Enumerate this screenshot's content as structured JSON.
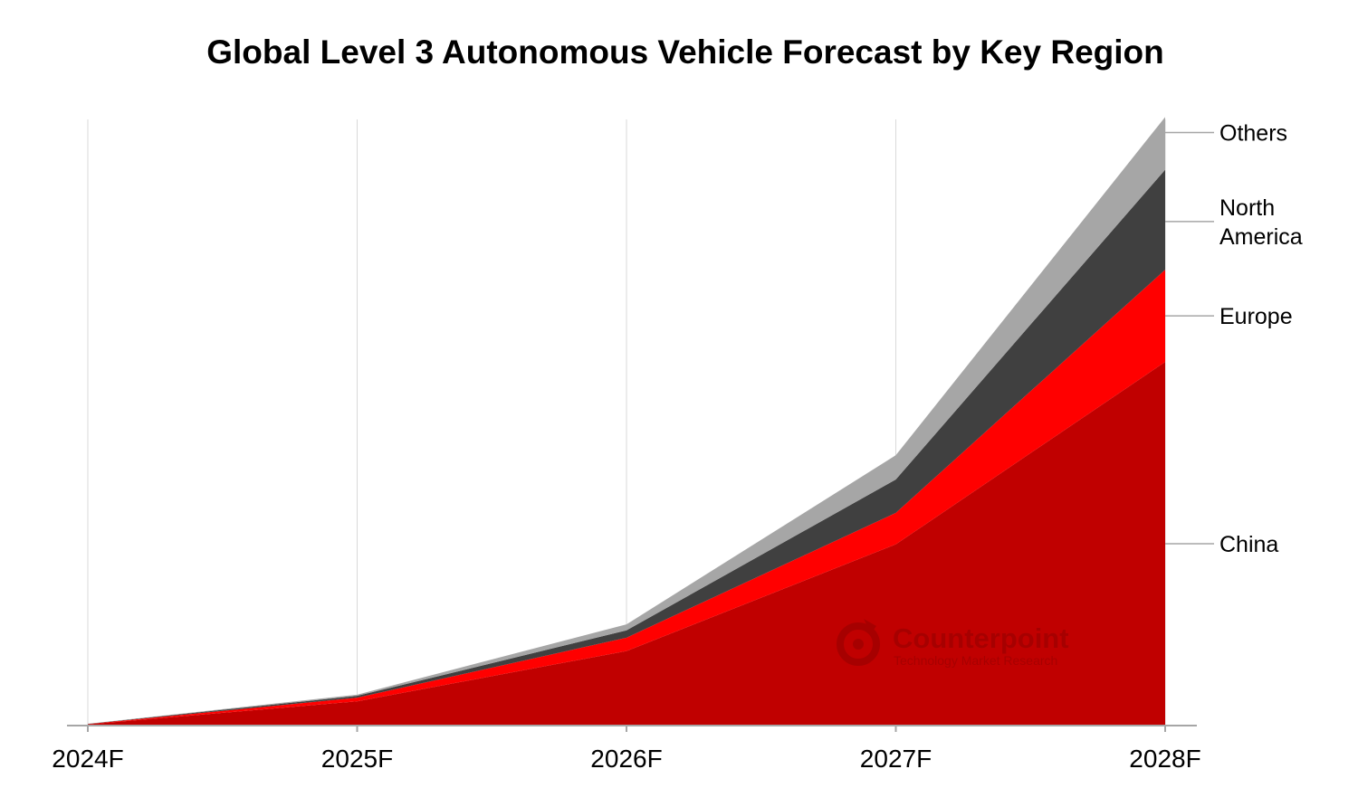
{
  "chart_data": {
    "type": "area",
    "stacked": true,
    "title": "Global Level 3 Autonomous Vehicle Forecast by Key Region",
    "xlabel": "",
    "ylabel": "",
    "categories": [
      "2024F",
      "2025F",
      "2026F",
      "2027F",
      "2028F"
    ],
    "ylim": [
      0,
      100
    ],
    "grid": "vertical",
    "series": [
      {
        "name": "China",
        "values": [
          0.2,
          4.0,
          12.3,
          29.9,
          60.0
        ],
        "color": "#c00000"
      },
      {
        "name": "Europe",
        "values": [
          0.05,
          0.6,
          2.2,
          5.2,
          15.2
        ],
        "color": "#ff0000"
      },
      {
        "name": "North America",
        "values": [
          0.03,
          0.3,
          1.2,
          5.5,
          16.5
        ],
        "color": "#404040"
      },
      {
        "name": "Others",
        "values": [
          0.02,
          0.2,
          1.0,
          4.0,
          8.7
        ],
        "color": "#a6a6a6"
      }
    ],
    "legend_labels": [
      {
        "series": "Others",
        "lines": [
          "Others"
        ]
      },
      {
        "series": "North America",
        "lines": [
          "North",
          "America"
        ]
      },
      {
        "series": "Europe",
        "lines": [
          "Europe"
        ]
      },
      {
        "series": "China",
        "lines": [
          "China"
        ]
      }
    ],
    "legend_position": "right, aligned with last data point"
  },
  "watermark": {
    "name": "Counterpoint",
    "tagline": "Technology Market Research"
  }
}
